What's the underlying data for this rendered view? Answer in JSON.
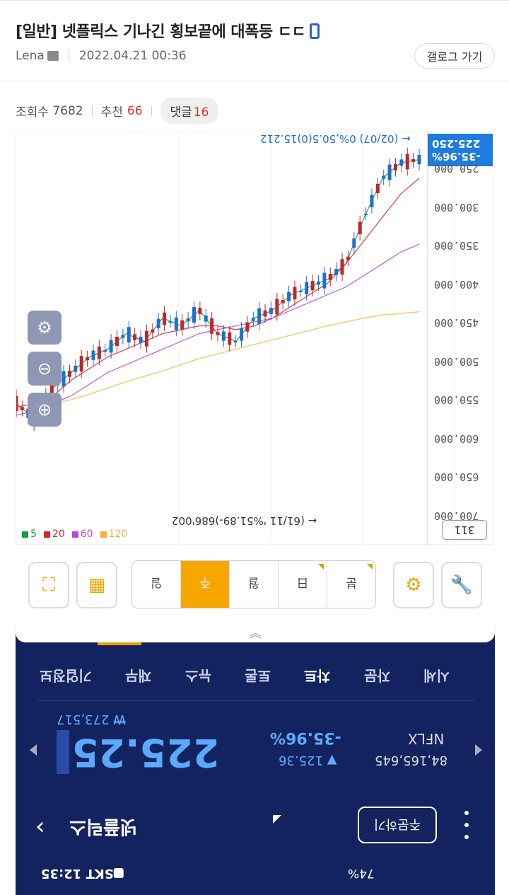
{
  "post": {
    "title": "[일반] 넷플릭스 기나긴 횡보끝에 대폭등 ㄷㄷ",
    "author": "Lena",
    "datetime": "2022.04.21 00:36",
    "gallery_button": "갤로그 가기",
    "views_label": "조회수",
    "views": "7682",
    "likes_label": "추천",
    "likes": "66",
    "comments_label": "댓글",
    "comments": "16"
  },
  "chart": {
    "price_tag_line1": "-35.96%",
    "price_tag_line2": "225.250",
    "note_top": "← (02/07) 0%,50.5(0)15.212",
    "note_bottom": "← (61/11 '%51.89-)686'002",
    "period_label": "311",
    "axis_ticks": [
      "250.000",
      "300.000",
      "350.000",
      "400.000",
      "450.000",
      "500.000",
      "550.000",
      "600.000",
      "650.000",
      "700.000"
    ],
    "legend": [
      {
        "label": "5",
        "color": "#1a9a3a"
      },
      {
        "label": "20",
        "color": "#d62a2a"
      },
      {
        "label": "60",
        "color": "#b44be0"
      },
      {
        "label": "120",
        "color": "#f2b233"
      }
    ]
  },
  "chart_data": {
    "type": "line",
    "title": "",
    "xlabel": "",
    "ylabel": "",
    "ylim": [
      200,
      710
    ],
    "series": [
      {
        "name": "5",
        "values": [
          540,
          560,
          520,
          500,
          480,
          470,
          450,
          460,
          430,
          440,
          420,
          450,
          460,
          430,
          420,
          400,
          390,
          380,
          360,
          300,
          250,
          230,
          226
        ]
      },
      {
        "name": "20",
        "values": [
          545,
          540,
          530,
          510,
          495,
          480,
          470,
          460,
          450,
          445,
          440,
          440,
          445,
          440,
          430,
          415,
          400,
          385,
          360,
          330,
          300,
          270,
          250
        ]
      },
      {
        "name": "60",
        "values": [
          555,
          550,
          540,
          530,
          515,
          500,
          490,
          480,
          470,
          460,
          450,
          445,
          440,
          435,
          430,
          420,
          410,
          400,
          390,
          375,
          360,
          345,
          335
        ]
      },
      {
        "name": "120",
        "values": [
          548,
          545,
          540,
          535,
          528,
          520,
          512,
          505,
          498,
          490,
          482,
          476,
          470,
          464,
          458,
          452,
          446,
          440,
          435,
          430,
          426,
          424,
          422
        ]
      }
    ]
  },
  "toolbar": {
    "periods": [
      "분",
      "日",
      "월",
      "주",
      "일"
    ],
    "active_index": 3
  },
  "panel": {
    "tabs": [
      "시세",
      "자문",
      "차트",
      "토론",
      "뉴스",
      "재무",
      "기업정보"
    ],
    "selected_tab": 2,
    "won_small": "₩ 273,517",
    "big_price": "225.25",
    "pct": "-35.96%",
    "change": "▼ 125.36",
    "ticker": "NFLX",
    "volume": "84,165,645",
    "stock_name": "넷플릭스",
    "order_button": "주문하기",
    "status_left": "SKT 12:35",
    "status_right": "74%"
  }
}
